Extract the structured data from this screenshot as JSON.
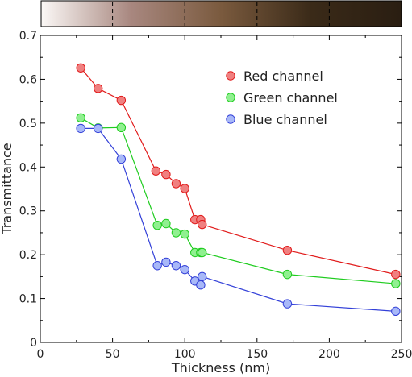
{
  "chart_data": {
    "type": "line",
    "xlabel": "Thickness (nm)",
    "ylabel": "Transmittance",
    "xlim": [
      0,
      250
    ],
    "ylim": [
      0,
      0.7
    ],
    "x_ticks": [
      "0",
      "50",
      "100",
      "150",
      "200",
      "250"
    ],
    "y_ticks": [
      "0",
      "0.1",
      "0.2",
      "0.3",
      "0.4",
      "0.5",
      "0.6",
      "0.7"
    ],
    "legend_position": "top-right",
    "grid": false,
    "color_strip": {
      "colors": [
        "#fbf8f6",
        "#a8877f",
        "#7a5a3e",
        "#3a2a18",
        "#2a1e12"
      ]
    },
    "series": [
      {
        "name": "Red channel",
        "fill": "#f08080",
        "stroke": "#e11b1b",
        "x": [
          28,
          40,
          56,
          80,
          87,
          94,
          100,
          107,
          111,
          112,
          171,
          246
        ],
        "y": [
          0.626,
          0.579,
          0.552,
          0.391,
          0.383,
          0.362,
          0.351,
          0.28,
          0.28,
          0.269,
          0.21,
          0.155
        ]
      },
      {
        "name": "Green channel",
        "fill": "#90f090",
        "stroke": "#1fcc1f",
        "x": [
          28,
          40,
          56,
          81,
          87,
          94,
          100,
          107,
          111,
          112,
          171,
          246
        ],
        "y": [
          0.512,
          0.489,
          0.49,
          0.267,
          0.271,
          0.25,
          0.247,
          0.205,
          0.205,
          0.205,
          0.155,
          0.134
        ]
      },
      {
        "name": "Blue channel",
        "fill": "#a8b8f8",
        "stroke": "#3340d8",
        "x": [
          28,
          40,
          56,
          81,
          87,
          94,
          100,
          107,
          111,
          112,
          171,
          246
        ],
        "y": [
          0.488,
          0.488,
          0.418,
          0.175,
          0.183,
          0.175,
          0.166,
          0.14,
          0.131,
          0.15,
          0.088,
          0.071
        ]
      }
    ]
  }
}
